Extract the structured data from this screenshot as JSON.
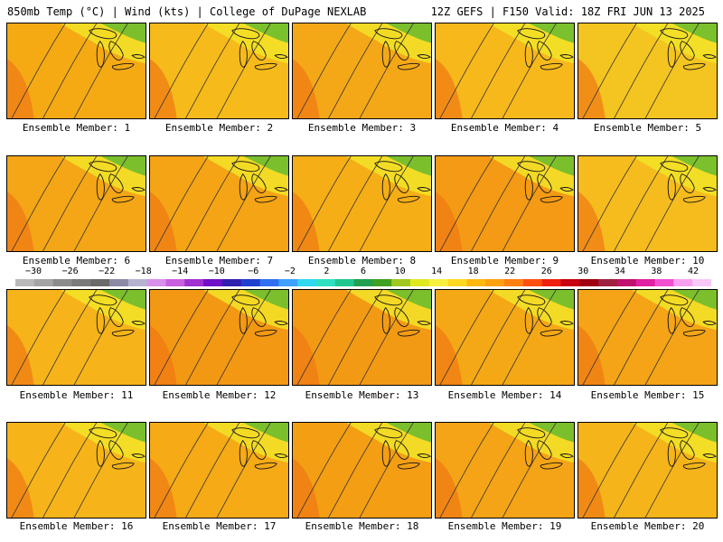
{
  "header": {
    "left": "850mb Temp (°C) | Wind (kts) | College of DuPage NEXLAB",
    "right": "12Z GEFS | F150 Valid: 18Z FRI JUN 13 2025"
  },
  "colorbar": {
    "labels": [
      "−30",
      "−26",
      "−22",
      "−18",
      "−14",
      "−10",
      "−6",
      "−2",
      "2",
      "6",
      "10",
      "14",
      "18",
      "22",
      "26",
      "30",
      "34",
      "38",
      "42"
    ],
    "colors": [
      "#b9b9b9",
      "#a4a4a4",
      "#8c8c8c",
      "#7a7a7a",
      "#6a6a6a",
      "#8a8aa6",
      "#b4b4d0",
      "#d890e8",
      "#c860e0",
      "#a030d0",
      "#7010c8",
      "#3020b0",
      "#2040d0",
      "#3070f0",
      "#40a0ff",
      "#30d8f0",
      "#30e0c0",
      "#20c890",
      "#20a050",
      "#40a020",
      "#a0c820",
      "#e0e820",
      "#f8f040",
      "#ffd820",
      "#ffb810",
      "#ffa010",
      "#ff8010",
      "#ff5010",
      "#f02010",
      "#c80010",
      "#a00010",
      "#a02040",
      "#c01070",
      "#e020a0",
      "#f050d0",
      "#f8a0f0",
      "#f8c8f8"
    ]
  },
  "members": [
    {
      "label": "Ensemble Member: 1",
      "base": "#f5aa14"
    },
    {
      "label": "Ensemble Member: 2",
      "base": "#f6ba1a"
    },
    {
      "label": "Ensemble Member: 3",
      "base": "#f4a818"
    },
    {
      "label": "Ensemble Member: 4",
      "base": "#f7b81c"
    },
    {
      "label": "Ensemble Member: 5",
      "base": "#f4c420"
    },
    {
      "label": "Ensemble Member: 6",
      "base": "#f4a616"
    },
    {
      "label": "Ensemble Member: 7",
      "base": "#f4a414"
    },
    {
      "label": "Ensemble Member: 8",
      "base": "#f6ae16"
    },
    {
      "label": "Ensemble Member: 9",
      "base": "#f49a14"
    },
    {
      "label": "Ensemble Member: 10",
      "base": "#f6bc1e"
    },
    {
      "label": "Ensemble Member: 11",
      "base": "#f6b41a"
    },
    {
      "label": "Ensemble Member: 12",
      "base": "#f39812"
    },
    {
      "label": "Ensemble Member: 13",
      "base": "#f39a14"
    },
    {
      "label": "Ensemble Member: 14",
      "base": "#f5a816"
    },
    {
      "label": "Ensemble Member: 15",
      "base": "#f4a416"
    },
    {
      "label": "Ensemble Member: 16",
      "base": "#f6b41a"
    },
    {
      "label": "Ensemble Member: 17",
      "base": "#f5aa16"
    },
    {
      "label": "Ensemble Member: 18",
      "base": "#f49e14"
    },
    {
      "label": "Ensemble Member: 19",
      "base": "#f4a416"
    },
    {
      "label": "Ensemble Member: 20",
      "base": "#f4b41a"
    }
  ]
}
